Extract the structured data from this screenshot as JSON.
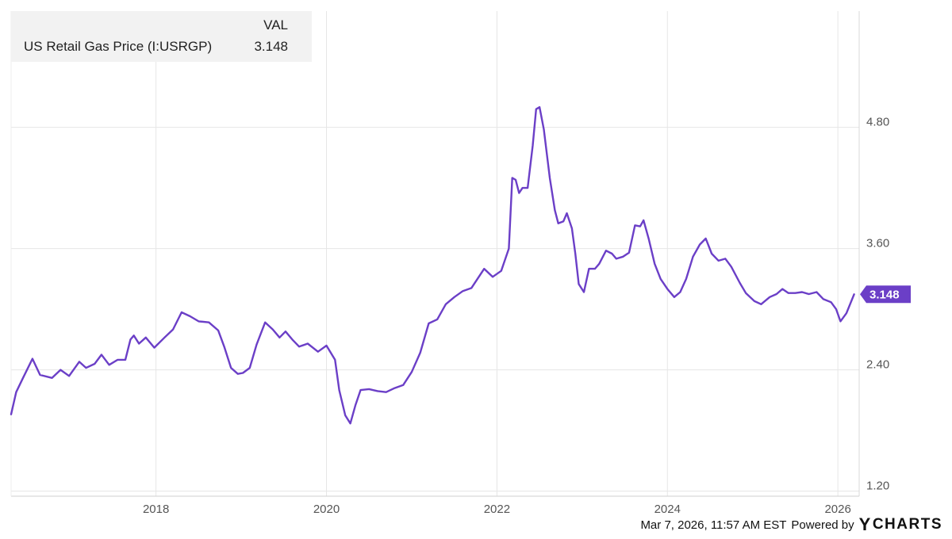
{
  "legend": {
    "column_header": "VAL",
    "series_name": "US Retail Gas Price (I:USRGP)",
    "series_value": "3.148"
  },
  "footer": {
    "timestamp": "Mar 7, 2026, 11:57 AM EST",
    "powered_by": "Powered by",
    "brand_y": "Y",
    "brand_rest": "CHARTS"
  },
  "colors": {
    "series": "#6b3fc7",
    "grid": "#e6e6e6",
    "axis_text": "#555555"
  },
  "chart_data": {
    "type": "line",
    "title": "",
    "xlabel": "",
    "ylabel": "",
    "y_axis_side": "right",
    "grid": true,
    "legend": "top-left",
    "xlim": [
      2016.3,
      2026.25
    ],
    "ylim": [
      1.15,
      5.95
    ],
    "x_ticks": [
      2018,
      2020,
      2022,
      2024,
      2026
    ],
    "x_tick_labels": [
      "2018",
      "2020",
      "2022",
      "2024",
      "2026"
    ],
    "y_ticks": [
      1.2,
      2.4,
      3.6,
      4.8
    ],
    "y_tick_labels": [
      "1.20",
      "2.40",
      "3.60",
      "4.80"
    ],
    "last_value_label": "3.148",
    "series": [
      {
        "name": "US Retail Gas Price (I:USRGP)",
        "x": [
          2016.3,
          2016.36,
          2016.44,
          2016.55,
          2016.64,
          2016.78,
          2016.88,
          2016.98,
          2017.1,
          2017.18,
          2017.28,
          2017.36,
          2017.45,
          2017.55,
          2017.64,
          2017.7,
          2017.74,
          2017.8,
          2017.88,
          2017.98,
          2018.1,
          2018.2,
          2018.3,
          2018.4,
          2018.5,
          2018.62,
          2018.73,
          2018.8,
          2018.88,
          2018.96,
          2019.02,
          2019.1,
          2019.18,
          2019.28,
          2019.37,
          2019.45,
          2019.52,
          2019.6,
          2019.68,
          2019.78,
          2019.9,
          2020.0,
          2020.1,
          2020.15,
          2020.22,
          2020.28,
          2020.34,
          2020.4,
          2020.5,
          2020.6,
          2020.7,
          2020.8,
          2020.9,
          2021.0,
          2021.1,
          2021.2,
          2021.3,
          2021.4,
          2021.5,
          2021.6,
          2021.7,
          2021.85,
          2021.95,
          2022.05,
          2022.14,
          2022.18,
          2022.22,
          2022.26,
          2022.3,
          2022.36,
          2022.42,
          2022.46,
          2022.5,
          2022.55,
          2022.62,
          2022.68,
          2022.72,
          2022.78,
          2022.82,
          2022.88,
          2022.92,
          2022.96,
          2023.02,
          2023.08,
          2023.15,
          2023.2,
          2023.28,
          2023.35,
          2023.4,
          2023.48,
          2023.55,
          2023.62,
          2023.68,
          2023.72,
          2023.78,
          2023.85,
          2023.92,
          2024.0,
          2024.08,
          2024.15,
          2024.22,
          2024.3,
          2024.38,
          2024.45,
          2024.52,
          2024.6,
          2024.68,
          2024.75,
          2024.85,
          2024.92,
          2025.02,
          2025.1,
          2025.2,
          2025.28,
          2025.35,
          2025.42,
          2025.5,
          2025.58,
          2025.66,
          2025.75,
          2025.83,
          2025.92,
          2025.98,
          2026.03,
          2026.1,
          2026.19
        ],
        "values": [
          1.96,
          2.18,
          2.32,
          2.51,
          2.35,
          2.32,
          2.4,
          2.34,
          2.48,
          2.42,
          2.46,
          2.55,
          2.45,
          2.5,
          2.5,
          2.7,
          2.74,
          2.66,
          2.72,
          2.62,
          2.72,
          2.8,
          2.97,
          2.93,
          2.88,
          2.87,
          2.79,
          2.63,
          2.42,
          2.36,
          2.37,
          2.42,
          2.65,
          2.87,
          2.8,
          2.72,
          2.78,
          2.7,
          2.63,
          2.66,
          2.58,
          2.64,
          2.5,
          2.2,
          1.95,
          1.87,
          2.05,
          2.2,
          2.21,
          2.19,
          2.18,
          2.22,
          2.25,
          2.38,
          2.57,
          2.86,
          2.9,
          3.05,
          3.12,
          3.18,
          3.21,
          3.4,
          3.32,
          3.38,
          3.6,
          4.3,
          4.28,
          4.15,
          4.2,
          4.2,
          4.62,
          4.98,
          5.0,
          4.78,
          4.3,
          3.98,
          3.85,
          3.87,
          3.95,
          3.8,
          3.55,
          3.25,
          3.17,
          3.4,
          3.4,
          3.45,
          3.58,
          3.55,
          3.5,
          3.52,
          3.56,
          3.83,
          3.82,
          3.88,
          3.7,
          3.45,
          3.3,
          3.2,
          3.12,
          3.17,
          3.3,
          3.52,
          3.64,
          3.7,
          3.55,
          3.48,
          3.5,
          3.42,
          3.26,
          3.16,
          3.08,
          3.05,
          3.12,
          3.15,
          3.2,
          3.16,
          3.16,
          3.17,
          3.15,
          3.17,
          3.1,
          3.07,
          3.0,
          2.88,
          2.96,
          3.148
        ]
      }
    ]
  }
}
